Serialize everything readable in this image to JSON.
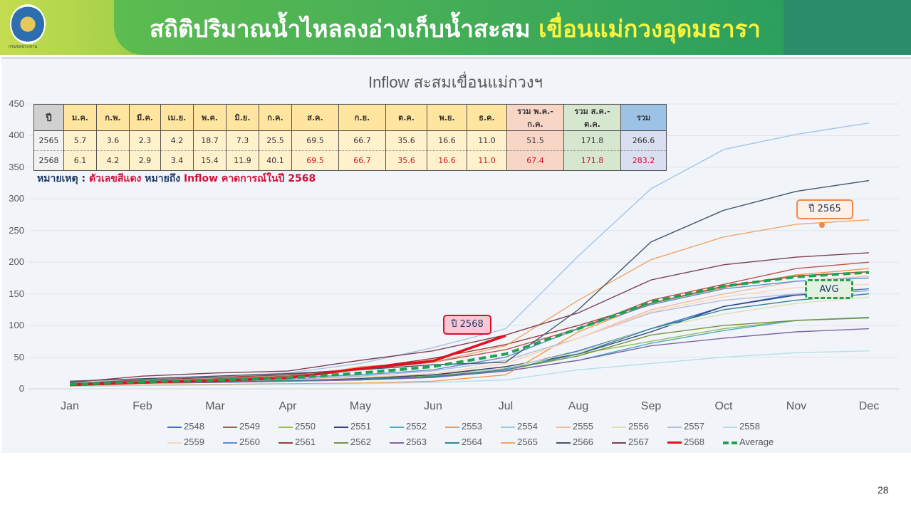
{
  "header": {
    "title_main": "สถิติปริมาณน้ำไหลลงอ่างเก็บน้ำสะสม ",
    "title_highlight": "เขื่อนแม่กวงอุดมธารา",
    "logo_caption": "กรมชลประทาน"
  },
  "table": {
    "headers": [
      "ปี",
      "ม.ค.",
      "ก.พ.",
      "มี.ค.",
      "เม.ย.",
      "พ.ค.",
      "มิ.ย.",
      "ก.ค.",
      "ส.ค.",
      "ก.ย.",
      "ต.ค.",
      "พ.ย.",
      "ธ.ค.",
      "รวม พ.ค.-ก.ค.",
      "รวม ส.ค.-ต.ค.",
      "รวม"
    ],
    "rows": [
      [
        "2565",
        "5.7",
        "3.6",
        "2.3",
        "4.2",
        "18.7",
        "7.3",
        "25.5",
        "69.5",
        "66.7",
        "35.6",
        "16.6",
        "11.0",
        "51.5",
        "171.8",
        "266.6"
      ],
      [
        "2568",
        "6.1",
        "4.2",
        "2.9",
        "3.4",
        "15.4",
        "11.9",
        "40.1",
        "69.5",
        "66.7",
        "35.6",
        "16.6",
        "11.0",
        "67.4",
        "171.8",
        "283.2"
      ]
    ]
  },
  "note": {
    "prefix": "หมายเหตุ : ",
    "red1": "ตัวเลขสีแดง",
    "middle": " หมายถึง ",
    "red2": "Inflow คาดการณ์ในปี 2568"
  },
  "callouts": {
    "y2568": "ปี 2568",
    "y2565": "ปี 2565",
    "avg": "AVG"
  },
  "page_number": "28",
  "chart_data": {
    "type": "line",
    "title": "Inflow สะสมเขื่อนแม่กวงฯ",
    "xlabel": "",
    "ylabel": "",
    "ylim": [
      0,
      450
    ],
    "yticks": [
      0,
      50,
      100,
      150,
      200,
      250,
      300,
      350,
      400,
      450
    ],
    "categories": [
      "Jan",
      "Feb",
      "Mar",
      "Apr",
      "May",
      "Jun",
      "Jul",
      "Aug",
      "Sep",
      "Oct",
      "Nov",
      "Dec"
    ],
    "grid": true,
    "legend_position": "bottom",
    "series": [
      {
        "name": "2548",
        "color": "#4472c4",
        "values": [
          8,
          12,
          14,
          15,
          18,
          22,
          32,
          60,
          95,
          130,
          150,
          158
        ]
      },
      {
        "name": "2549",
        "color": "#c0504d",
        "values": [
          7,
          12,
          16,
          20,
          30,
          42,
          62,
          95,
          140,
          165,
          190,
          200
        ]
      },
      {
        "name": "2550",
        "color": "#9bbb59",
        "values": [
          6,
          10,
          12,
          14,
          17,
          22,
          35,
          55,
          75,
          95,
          108,
          113
        ]
      },
      {
        "name": "2551",
        "color": "#2f3f7f",
        "values": [
          6,
          9,
          11,
          13,
          16,
          22,
          35,
          55,
          90,
          130,
          148,
          155
        ]
      },
      {
        "name": "2552",
        "color": "#4bacc6",
        "values": [
          6,
          9,
          10,
          12,
          14,
          18,
          28,
          45,
          72,
          92,
          108,
          113
        ]
      },
      {
        "name": "2553",
        "color": "#f79646",
        "values": [
          5,
          6,
          7,
          8,
          9,
          12,
          22,
          90,
          135,
          160,
          180,
          190
        ]
      },
      {
        "name": "2554",
        "color": "#a5c3e4",
        "values": [
          9,
          15,
          20,
          25,
          40,
          65,
          95,
          210,
          316,
          378,
          402,
          420
        ]
      },
      {
        "name": "2555",
        "color": "#f4b8a0",
        "values": [
          6,
          10,
          12,
          14,
          18,
          24,
          40,
          80,
          125,
          150,
          170,
          178
        ]
      },
      {
        "name": "2556",
        "color": "#d8e2b0",
        "values": [
          6,
          9,
          11,
          12,
          15,
          20,
          33,
          58,
          95,
          118,
          135,
          145
        ]
      },
      {
        "name": "2557",
        "color": "#b4bcd6",
        "values": [
          7,
          11,
          14,
          16,
          20,
          28,
          45,
          80,
          120,
          140,
          150,
          155
        ]
      },
      {
        "name": "2558",
        "color": "#b7dde8",
        "values": [
          4,
          5,
          6,
          7,
          8,
          10,
          14,
          30,
          40,
          50,
          57,
          60
        ]
      },
      {
        "name": "2559",
        "color": "#fcd5b4",
        "values": [
          6,
          10,
          12,
          14,
          18,
          24,
          40,
          80,
          122,
          145,
          160,
          165
        ]
      },
      {
        "name": "2560",
        "color": "#558ed5",
        "values": [
          7,
          12,
          15,
          18,
          22,
          30,
          50,
          95,
          133,
          158,
          170,
          175
        ]
      },
      {
        "name": "2561",
        "color": "#9b3b38",
        "values": [
          8,
          14,
          18,
          22,
          32,
          48,
          70,
          100,
          135,
          162,
          178,
          185
        ]
      },
      {
        "name": "2562",
        "color": "#77933c",
        "values": [
          6,
          9,
          11,
          13,
          15,
          20,
          30,
          52,
          85,
          100,
          108,
          112
        ]
      },
      {
        "name": "2563",
        "color": "#8064a2",
        "values": [
          6,
          9,
          10,
          12,
          14,
          18,
          28,
          45,
          68,
          80,
          90,
          95
        ]
      },
      {
        "name": "2564",
        "color": "#31859c",
        "values": [
          6,
          9,
          11,
          13,
          15,
          19,
          30,
          55,
          95,
          125,
          140,
          150
        ]
      },
      {
        "name": "2565",
        "color": "#f2a463",
        "values": [
          6,
          9,
          12,
          16,
          35,
          42,
          68,
          140,
          204,
          240,
          260,
          267
        ]
      },
      {
        "name": "2566",
        "color": "#44546a",
        "values": [
          12,
          16,
          20,
          24,
          30,
          38,
          42,
          125,
          232,
          282,
          312,
          329
        ]
      },
      {
        "name": "2567",
        "color": "#7f3f50",
        "values": [
          10,
          20,
          25,
          28,
          45,
          60,
          85,
          120,
          172,
          196,
          208,
          215
        ]
      },
      {
        "name": "2568",
        "color": "#e0101e",
        "values": [
          6,
          10,
          13,
          17,
          32,
          44,
          84,
          null,
          null,
          null,
          null,
          null
        ]
      },
      {
        "name": "Average",
        "color": "#22a04b",
        "values": [
          7,
          11,
          14,
          17,
          25,
          35,
          55,
          95,
          137,
          162,
          177,
          184
        ]
      }
    ]
  }
}
